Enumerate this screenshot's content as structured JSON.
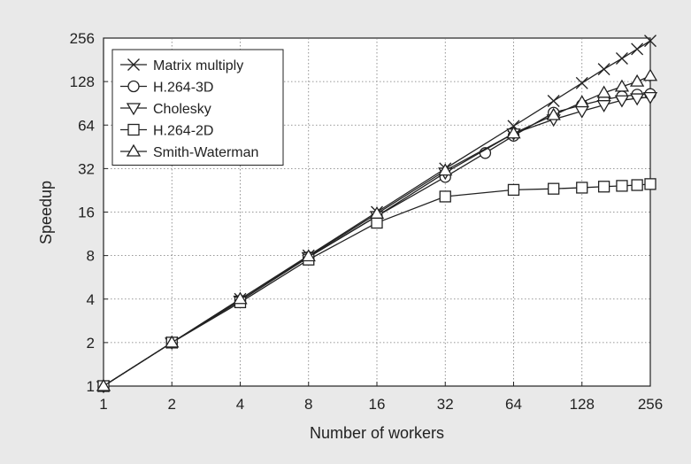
{
  "chart_data": {
    "type": "line",
    "xlabel": "Number of workers",
    "ylabel": "Speedup",
    "x_scale": "log2",
    "y_scale": "log2",
    "xlim": [
      1,
      256
    ],
    "ylim": [
      1,
      256
    ],
    "x_ticks": [
      "1",
      "2",
      "4",
      "8",
      "16",
      "32",
      "64",
      "128",
      "256"
    ],
    "y_ticks": [
      "1",
      "2",
      "4",
      "8",
      "16",
      "32",
      "64",
      "128",
      "256"
    ],
    "grid": true,
    "legend_position": "top-left",
    "series": [
      {
        "name": "Matrix multiply",
        "marker": "x",
        "points": [
          [
            1,
            1
          ],
          [
            2,
            2
          ],
          [
            4,
            4
          ],
          [
            8,
            8
          ],
          [
            16,
            16
          ],
          [
            32,
            32
          ],
          [
            64,
            63
          ],
          [
            96,
            94
          ],
          [
            128,
            125
          ],
          [
            160,
            156
          ],
          [
            192,
            185
          ],
          [
            224,
            215
          ],
          [
            256,
            245
          ]
        ]
      },
      {
        "name": "H.264-3D",
        "marker": "circle",
        "points": [
          [
            1,
            1
          ],
          [
            2,
            2
          ],
          [
            4,
            3.9
          ],
          [
            8,
            7.8
          ],
          [
            16,
            15
          ],
          [
            32,
            28
          ],
          [
            48,
            41
          ],
          [
            64,
            54
          ],
          [
            96,
            78
          ],
          [
            128,
            88
          ],
          [
            160,
            96
          ],
          [
            192,
            101
          ],
          [
            224,
            104
          ],
          [
            256,
            105
          ]
        ]
      },
      {
        "name": "Cholesky",
        "marker": "triangle-down",
        "points": [
          [
            1,
            1
          ],
          [
            2,
            2
          ],
          [
            4,
            3.9
          ],
          [
            8,
            7.8
          ],
          [
            16,
            15
          ],
          [
            32,
            30
          ],
          [
            64,
            56
          ],
          [
            96,
            70
          ],
          [
            128,
            80
          ],
          [
            160,
            88
          ],
          [
            192,
            95
          ],
          [
            224,
            98
          ],
          [
            256,
            100
          ]
        ]
      },
      {
        "name": "H.264-2D",
        "marker": "square",
        "points": [
          [
            1,
            1
          ],
          [
            2,
            2
          ],
          [
            4,
            3.8
          ],
          [
            8,
            7.5
          ],
          [
            16,
            13.5
          ],
          [
            32,
            20.5
          ],
          [
            64,
            22.8
          ],
          [
            96,
            23.2
          ],
          [
            128,
            23.6
          ],
          [
            160,
            24
          ],
          [
            192,
            24.3
          ],
          [
            224,
            24.6
          ],
          [
            256,
            25
          ]
        ]
      },
      {
        "name": "Smith-Waterman",
        "marker": "triangle-up",
        "points": [
          [
            1,
            1
          ],
          [
            2,
            2
          ],
          [
            4,
            4
          ],
          [
            8,
            7.9
          ],
          [
            16,
            15.6
          ],
          [
            32,
            31
          ],
          [
            64,
            56
          ],
          [
            96,
            75
          ],
          [
            128,
            92
          ],
          [
            160,
            107
          ],
          [
            192,
            118
          ],
          [
            224,
            128
          ],
          [
            256,
            140
          ]
        ]
      }
    ]
  }
}
